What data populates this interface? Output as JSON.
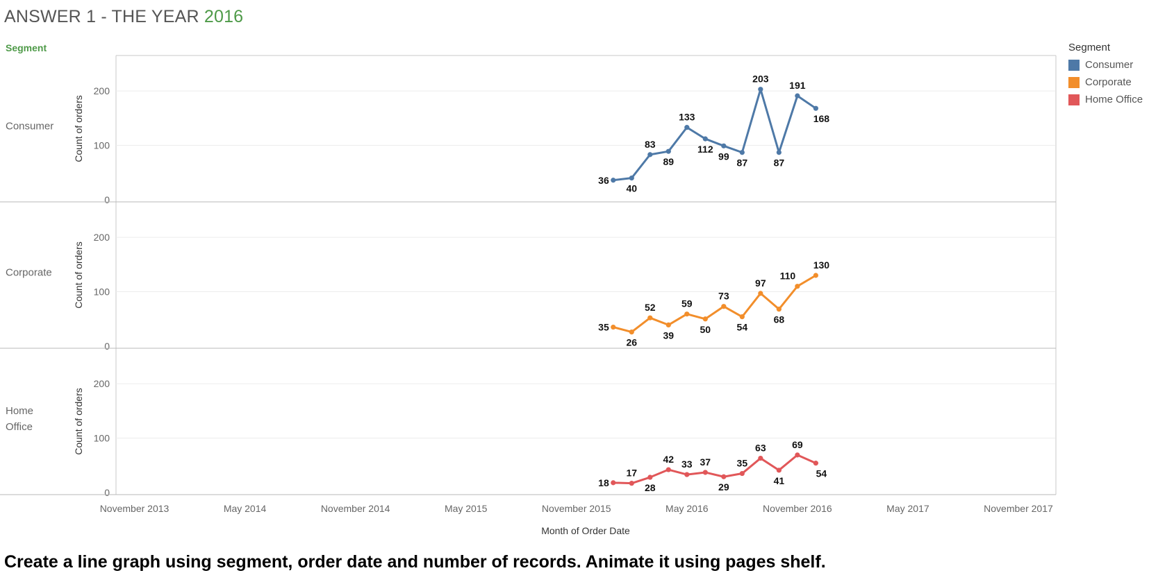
{
  "header": {
    "title_prefix": "ANSWER 1 -  THE YEAR ",
    "title_year": "2016",
    "segment_header": "Segment"
  },
  "legend": {
    "title": "Segment",
    "items": [
      {
        "label": "Consumer",
        "color": "#4e79a7"
      },
      {
        "label": "Corporate",
        "color": "#f28e2b"
      },
      {
        "label": "Home Office",
        "color": "#e15759"
      }
    ]
  },
  "instruction": "Create a line graph using segment, order date and number of records. Animate it using pages shelf.",
  "chart_data": {
    "type": "line",
    "xlabel": "Month of Order Date",
    "ylabel": "Count of orders",
    "x_range": [
      "2013-10",
      "2018-01"
    ],
    "ylim": [
      0,
      260
    ],
    "y_ticks": [
      0,
      100,
      200
    ],
    "x_ticks": [
      {
        "date": "2013-11",
        "label": "November 2013"
      },
      {
        "date": "2014-05",
        "label": "May 2014"
      },
      {
        "date": "2014-11",
        "label": "November 2014"
      },
      {
        "date": "2015-05",
        "label": "May 2015"
      },
      {
        "date": "2015-11",
        "label": "November 2015"
      },
      {
        "date": "2016-05",
        "label": "May 2016"
      },
      {
        "date": "2016-11",
        "label": "November 2016"
      },
      {
        "date": "2017-05",
        "label": "May 2017"
      },
      {
        "date": "2017-11",
        "label": "November 2017"
      }
    ],
    "x": [
      "2016-01",
      "2016-02",
      "2016-03",
      "2016-04",
      "2016-05",
      "2016-06",
      "2016-07",
      "2016-08",
      "2016-09",
      "2016-10",
      "2016-11",
      "2016-12"
    ],
    "series": [
      {
        "name": "Consumer",
        "label_lines": [
          "Consumer"
        ],
        "color": "#4e79a7",
        "values": [
          36,
          40,
          83,
          89,
          133,
          112,
          99,
          87,
          203,
          87,
          191,
          168
        ],
        "label_pos": [
          "left",
          "below",
          "above",
          "below",
          "above",
          "below",
          "below",
          "below",
          "above",
          "below",
          "above",
          "below-right"
        ]
      },
      {
        "name": "Corporate",
        "label_lines": [
          "Corporate"
        ],
        "color": "#f28e2b",
        "values": [
          35,
          26,
          52,
          39,
          59,
          50,
          73,
          54,
          97,
          68,
          110,
          130
        ],
        "label_pos": [
          "left",
          "below",
          "above",
          "below",
          "above",
          "below",
          "above",
          "below",
          "above",
          "below",
          "above-left",
          "above-right"
        ]
      },
      {
        "name": "Home Office",
        "label_lines": [
          "Home",
          "Office"
        ],
        "color": "#e15759",
        "values": [
          18,
          17,
          28,
          42,
          33,
          37,
          29,
          35,
          63,
          41,
          69,
          54
        ],
        "label_pos": [
          "left",
          "above",
          "below",
          "above",
          "above",
          "above",
          "below",
          "above",
          "above",
          "below",
          "above",
          "below-right"
        ]
      }
    ],
    "grid": true,
    "legend_position": "right"
  }
}
